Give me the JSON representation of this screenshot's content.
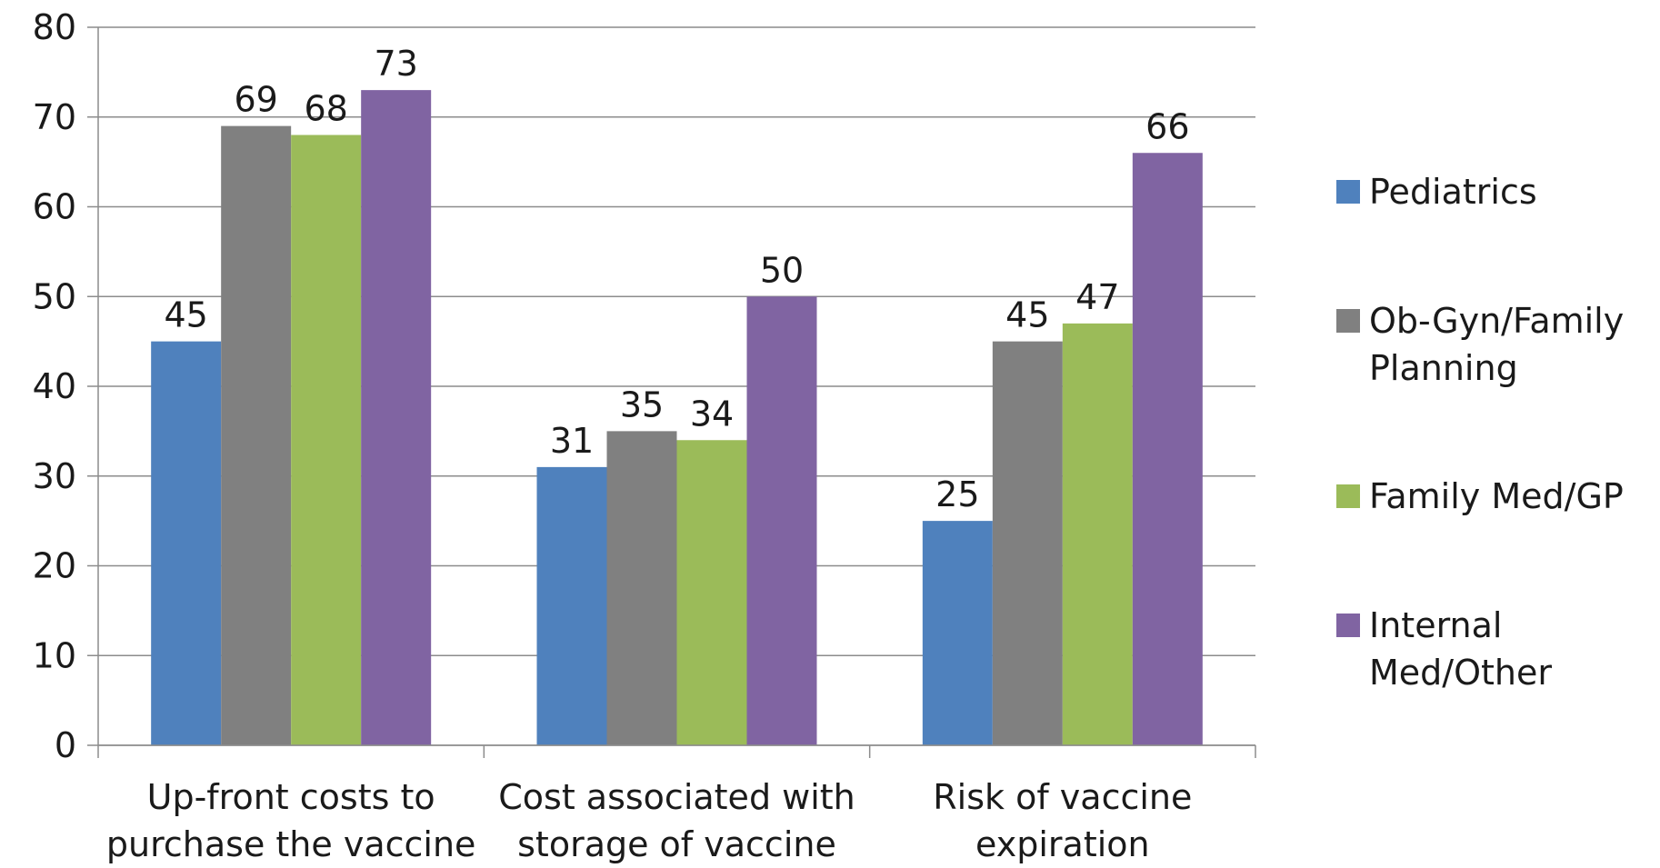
{
  "chart_data": {
    "type": "bar",
    "categories": [
      [
        "Up-front costs to",
        "purchase the vaccine"
      ],
      [
        "Cost associated with",
        "storage of vaccine"
      ],
      [
        "Risk of vaccine",
        "expiration"
      ]
    ],
    "series": [
      {
        "name": [
          "Pediatrics"
        ],
        "color": "#4F81BD",
        "values": [
          45,
          31,
          25
        ]
      },
      {
        "name": [
          "Ob-Gyn/Family",
          "Planning"
        ],
        "color": "#808080",
        "values": [
          69,
          35,
          45
        ]
      },
      {
        "name": [
          "Family Med/GP"
        ],
        "color": "#9BBB59",
        "values": [
          68,
          34,
          47
        ]
      },
      {
        "name": [
          "Internal",
          "Med/Other"
        ],
        "color": "#8064A2",
        "values": [
          73,
          50,
          66
        ]
      }
    ],
    "ylim": [
      0,
      80
    ],
    "yticks": [
      0,
      10,
      20,
      30,
      40,
      50,
      60,
      70,
      80
    ],
    "grid": true,
    "legend_position": "right",
    "data_labels": true
  }
}
